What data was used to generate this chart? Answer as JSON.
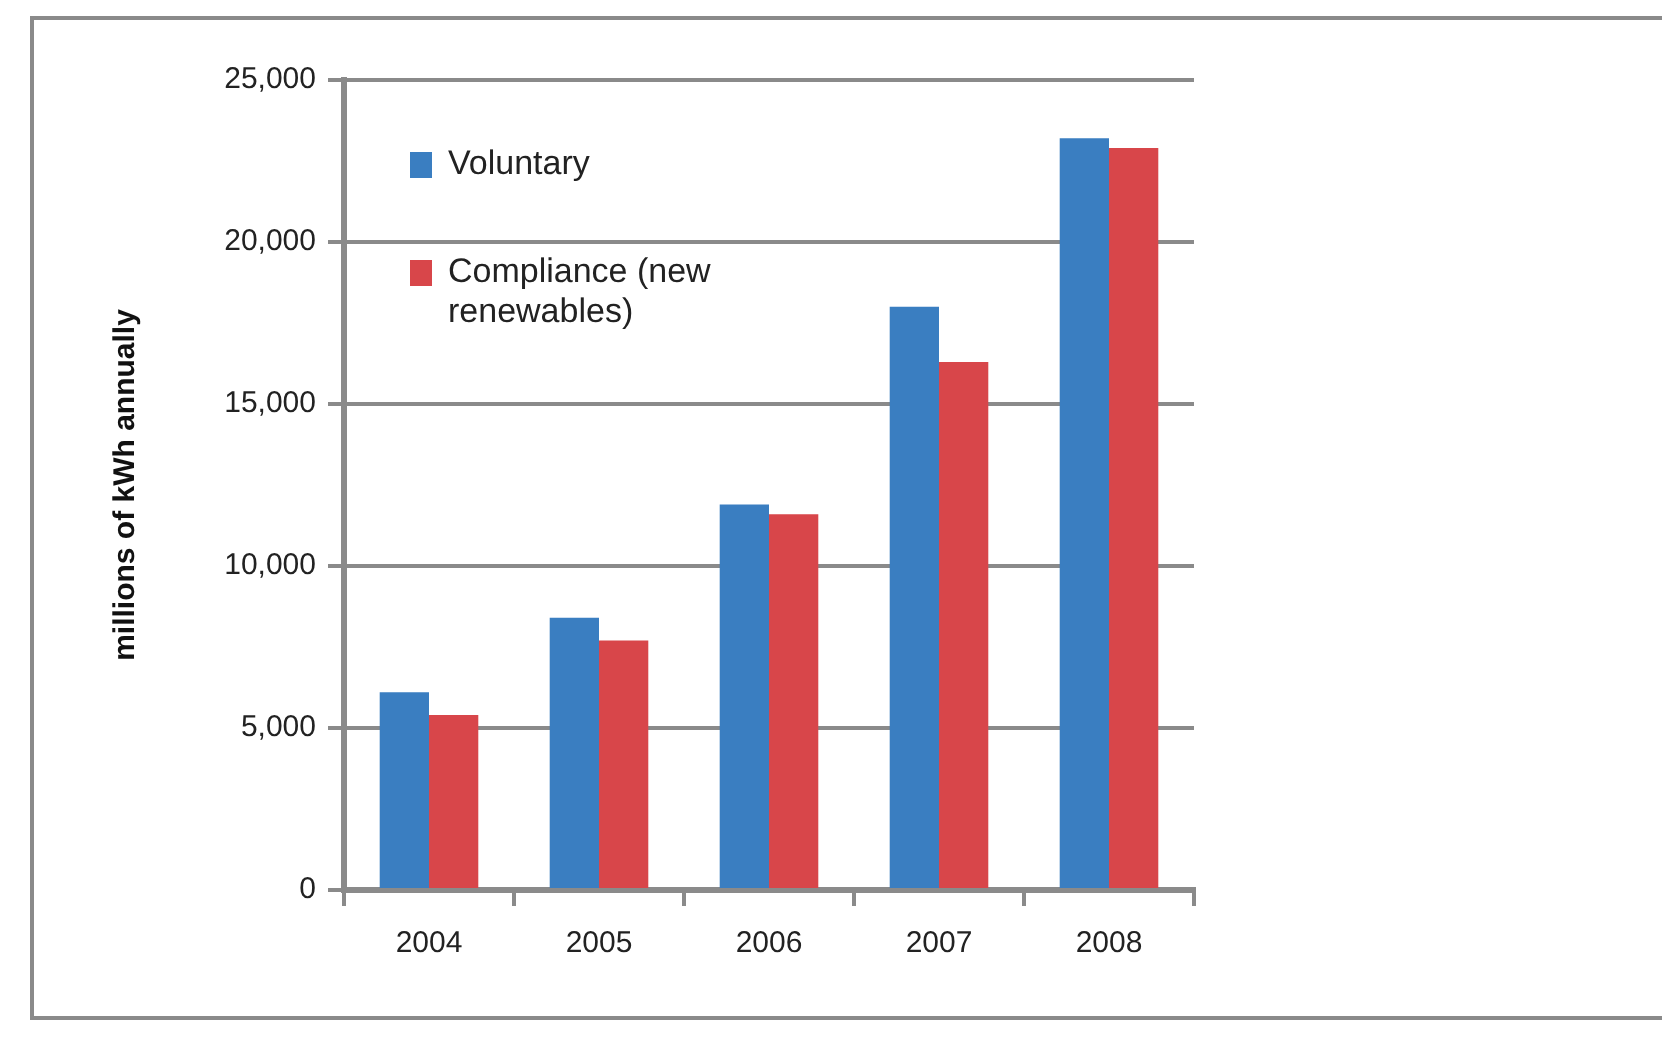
{
  "chart_data": {
    "type": "bar",
    "ylabel": "millions of kWh annually",
    "categories": [
      "2004",
      "2005",
      "2006",
      "2007",
      "2008"
    ],
    "series": [
      {
        "name": "Voluntary",
        "color": "#3a7ec1",
        "values": [
          6100,
          8400,
          11900,
          18000,
          23200
        ]
      },
      {
        "name": "Compliance (new renewables)",
        "color": "#d8464a",
        "values": [
          5400,
          7700,
          11600,
          16300,
          22900
        ]
      }
    ],
    "ylim": [
      0,
      25000
    ],
    "yticks": [
      {
        "value": 0,
        "label": "0"
      },
      {
        "value": 5000,
        "label": "5,000"
      },
      {
        "value": 10000,
        "label": "10,000"
      },
      {
        "value": 15000,
        "label": "15,000"
      },
      {
        "value": 20000,
        "label": "20,000"
      },
      {
        "value": 25000,
        "label": "25,000"
      }
    ],
    "grid": "y",
    "legend": "top left"
  }
}
